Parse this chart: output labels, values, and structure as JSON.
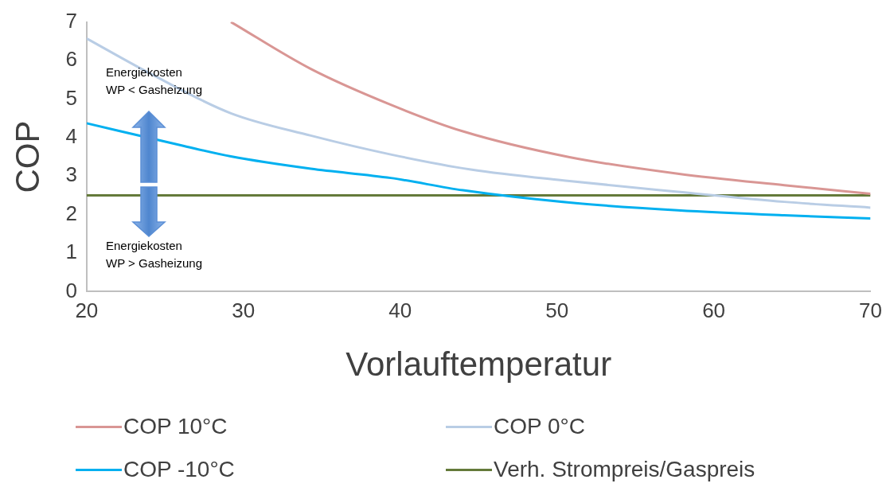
{
  "chart_data": {
    "type": "line",
    "xlabel": "Vorlauftemperatur",
    "ylabel": "COP",
    "xlim": [
      20,
      70
    ],
    "xticks": [
      20,
      30,
      40,
      50,
      60,
      70
    ],
    "ylim": [
      0,
      7
    ],
    "yticks": [
      0,
      1,
      2,
      3,
      4,
      5,
      6,
      7
    ],
    "grid": false,
    "legend": "bottom",
    "marker": "none",
    "line_style": "solid",
    "annotations": [
      "Energiekosten\nWP < Gasheizung",
      "Energiekosten\nWP > Gasheizung"
    ],
    "series": [
      {
        "name": "COP 10°C",
        "color": "#d99694",
        "x": [
          29.2,
          34.3,
          39.4,
          44.0,
          50.8,
          57.7,
          64.5,
          70
        ],
        "values": [
          7,
          5.78,
          4.85,
          4.16,
          3.49,
          3.06,
          2.76,
          2.54
        ]
      },
      {
        "name": "COP 0°C",
        "color": "#b9cde5",
        "x": [
          20,
          24.1,
          29.2,
          34.3,
          39.4,
          44.5,
          50.8,
          57.7,
          64.5,
          70
        ],
        "values": [
          6.57,
          5.65,
          4.63,
          4.05,
          3.56,
          3.17,
          2.87,
          2.59,
          2.33,
          2.18
        ]
      },
      {
        "name": "COP -10°C",
        "color": "#00b0f0",
        "x": [
          20,
          26,
          29.2,
          34.3,
          39.4,
          44.0,
          50.8,
          57.7,
          64.5,
          70
        ],
        "values": [
          4.37,
          3.8,
          3.51,
          3.19,
          2.95,
          2.63,
          2.31,
          2.11,
          1.98,
          1.9
        ]
      },
      {
        "name": "Verh. Strompreis/Gaspreis",
        "color": "#647a3a",
        "x": [
          20,
          70
        ],
        "values": [
          2.5,
          2.5
        ]
      }
    ]
  }
}
